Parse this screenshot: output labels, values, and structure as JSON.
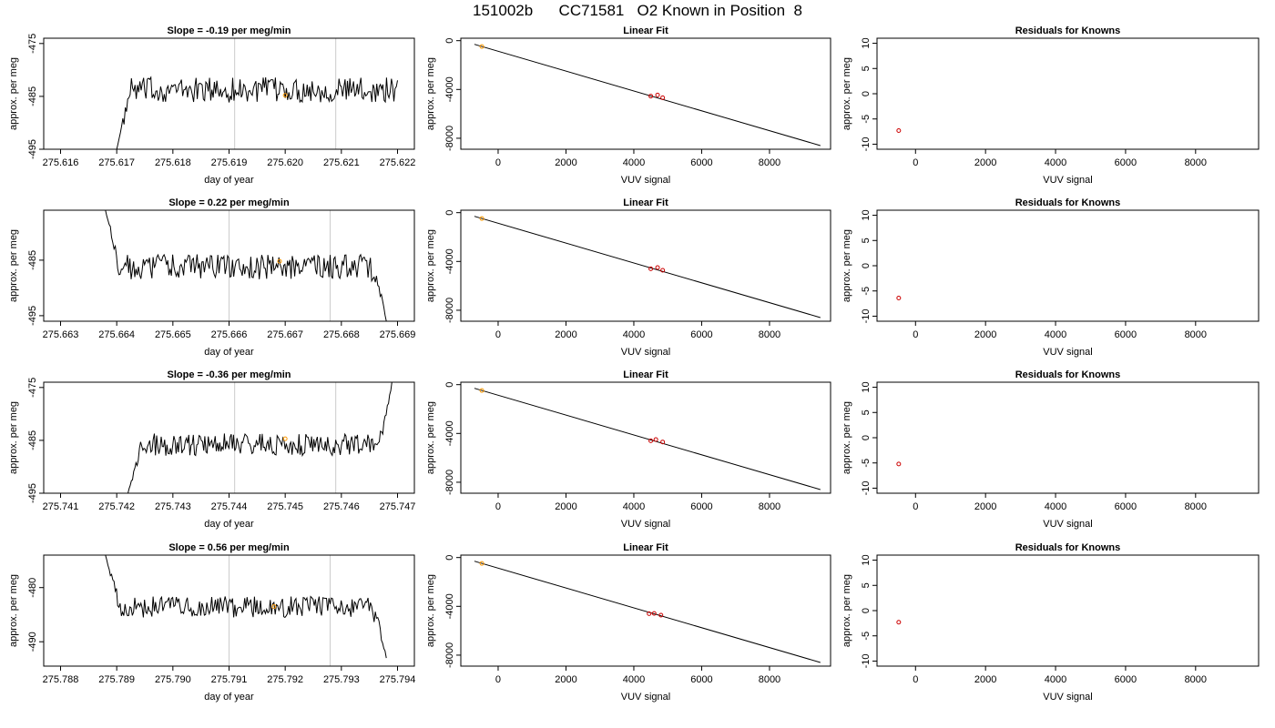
{
  "page": {
    "title": "151002b      CC71581   O2 Known in Position  8"
  },
  "colors": {
    "trace": "#000000",
    "vline": "#cccccc",
    "known_point": "#ff9900",
    "point": "#cc0000",
    "fit_line": "#000000"
  },
  "chart_data": [
    {
      "type": "line",
      "row": 1,
      "title": "Slope =  -0.19  per meg/min",
      "xlabel": "day of year",
      "ylabel": "approx. per meg",
      "xlim": [
        275.6157,
        275.6223
      ],
      "ylim": [
        -495,
        -474
      ],
      "xticks": [
        "275.616",
        "275.617",
        "275.618",
        "275.619",
        "275.620",
        "275.621",
        "275.622"
      ],
      "xtick_values": [
        275.616,
        275.617,
        275.618,
        275.619,
        275.62,
        275.621,
        275.622
      ],
      "yticks": [
        "-495",
        "-485",
        "-475"
      ],
      "ytick_values": [
        -495,
        -485,
        -475
      ],
      "vlines": [
        275.6191,
        275.6209
      ],
      "trace_range": [
        275.617,
        275.622
      ],
      "trace_start": -495,
      "trace_mean": -483.8,
      "trace_noise": 1.6,
      "trace_end_values": [],
      "highlight": {
        "x": 275.62,
        "y": -484.8
      }
    },
    {
      "type": "scatter",
      "row": 1,
      "title": "Linear Fit",
      "xlabel": "VUV signal",
      "ylabel": "approx. per meg",
      "xlim": [
        -1100,
        9800
      ],
      "ylim": [
        -8900,
        200
      ],
      "xticks": [
        "0",
        "2000",
        "4000",
        "6000",
        "8000"
      ],
      "xtick_values": [
        0,
        2000,
        4000,
        6000,
        8000
      ],
      "yticks": [
        "-8000",
        "-4000",
        "0"
      ],
      "ytick_values": [
        -8000,
        -4000,
        0
      ],
      "fit_line": [
        [
          -700,
          -300
        ],
        [
          9500,
          -8600
        ]
      ],
      "known_point": {
        "x": -480,
        "y": -484
      },
      "points": [
        {
          "x": 4500,
          "y": -4550
        },
        {
          "x": 4700,
          "y": -4450
        },
        {
          "x": 4850,
          "y": -4680
        }
      ]
    },
    {
      "type": "scatter",
      "row": 1,
      "title": "Residuals for Knowns",
      "xlabel": "VUV signal",
      "ylabel": "approx. per meg",
      "xlim": [
        -1100,
        9800
      ],
      "ylim": [
        -11,
        11
      ],
      "xticks": [
        "0",
        "2000",
        "4000",
        "6000",
        "8000"
      ],
      "xtick_values": [
        0,
        2000,
        4000,
        6000,
        8000
      ],
      "yticks": [
        "-10",
        "-5",
        "0",
        "5",
        "10"
      ],
      "ytick_values": [
        -10,
        -5,
        0,
        5,
        10
      ],
      "points": [
        {
          "x": -480,
          "y": -7.3
        }
      ]
    },
    {
      "type": "line",
      "row": 2,
      "title": "Slope =  0.22  per meg/min",
      "xlabel": "day of year",
      "ylabel": "approx. per meg",
      "xlim": [
        275.6627,
        275.6693
      ],
      "ylim": [
        -496,
        -476
      ],
      "xticks": [
        "275.663",
        "275.664",
        "275.665",
        "275.666",
        "275.667",
        "275.668",
        "275.669"
      ],
      "xtick_values": [
        275.663,
        275.664,
        275.665,
        275.666,
        275.667,
        275.668,
        275.669
      ],
      "yticks": [
        "-495",
        "-485"
      ],
      "ytick_values": [
        -495,
        -485
      ],
      "vlines": [
        275.666,
        275.6678
      ],
      "trace_range": [
        275.6638,
        275.6688
      ],
      "trace_start": -476,
      "trace_mean": -486.2,
      "trace_noise": 1.5,
      "trace_end_values": [
        -484.5,
        -496
      ],
      "highlight": {
        "x": 275.6669,
        "y": -485.2
      }
    },
    {
      "type": "scatter",
      "row": 2,
      "title": "Linear Fit",
      "xlabel": "VUV signal",
      "ylabel": "approx. per meg",
      "xlim": [
        -1100,
        9800
      ],
      "ylim": [
        -8900,
        200
      ],
      "xticks": [
        "0",
        "2000",
        "4000",
        "6000",
        "8000"
      ],
      "xtick_values": [
        0,
        2000,
        4000,
        6000,
        8000
      ],
      "yticks": [
        "-8000",
        "-4000",
        "0"
      ],
      "ytick_values": [
        -8000,
        -4000,
        0
      ],
      "fit_line": [
        [
          -700,
          -300
        ],
        [
          9500,
          -8600
        ]
      ],
      "known_point": {
        "x": -480,
        "y": -485
      },
      "points": [
        {
          "x": 4500,
          "y": -4600
        },
        {
          "x": 4700,
          "y": -4500
        },
        {
          "x": 4850,
          "y": -4720
        }
      ]
    },
    {
      "type": "scatter",
      "row": 2,
      "title": "Residuals for Knowns",
      "xlabel": "VUV signal",
      "ylabel": "approx. per meg",
      "xlim": [
        -1100,
        9800
      ],
      "ylim": [
        -11,
        11
      ],
      "xticks": [
        "0",
        "2000",
        "4000",
        "6000",
        "8000"
      ],
      "xtick_values": [
        0,
        2000,
        4000,
        6000,
        8000
      ],
      "yticks": [
        "-10",
        "-5",
        "0",
        "5",
        "10"
      ],
      "ytick_values": [
        -10,
        -5,
        0,
        5,
        10
      ],
      "points": [
        {
          "x": -480,
          "y": -6.4
        }
      ]
    },
    {
      "type": "line",
      "row": 3,
      "title": "Slope =  -0.36  per meg/min",
      "xlabel": "day of year",
      "ylabel": "approx. per meg",
      "xlim": [
        275.7407,
        275.7473
      ],
      "ylim": [
        -495,
        -474
      ],
      "xticks": [
        "275.741",
        "275.742",
        "275.743",
        "275.744",
        "275.745",
        "275.746",
        "275.747"
      ],
      "xtick_values": [
        275.741,
        275.742,
        275.743,
        275.744,
        275.745,
        275.746,
        275.747
      ],
      "yticks": [
        "-495",
        "-485",
        "-475"
      ],
      "ytick_values": [
        -495,
        -485,
        -475
      ],
      "vlines": [
        275.7441,
        275.7459
      ],
      "trace_range": [
        275.7422,
        275.7469
      ],
      "trace_start": -495,
      "trace_mean": -485.8,
      "trace_noise": 1.4,
      "trace_end_values": [
        -474
      ],
      "highlight": {
        "x": 275.745,
        "y": -484.7
      }
    },
    {
      "type": "scatter",
      "row": 3,
      "title": "Linear Fit",
      "xlabel": "VUV signal",
      "ylabel": "approx. per meg",
      "xlim": [
        -1100,
        9800
      ],
      "ylim": [
        -8900,
        200
      ],
      "xticks": [
        "0",
        "2000",
        "4000",
        "6000",
        "8000"
      ],
      "xtick_values": [
        0,
        2000,
        4000,
        6000,
        8000
      ],
      "yticks": [
        "-8000",
        "-4000",
        "0"
      ],
      "ytick_values": [
        -8000,
        -4000,
        0
      ],
      "fit_line": [
        [
          -700,
          -300
        ],
        [
          9500,
          -8600
        ]
      ],
      "known_point": {
        "x": -480,
        "y": -485
      },
      "points": [
        {
          "x": 4500,
          "y": -4600
        },
        {
          "x": 4650,
          "y": -4500
        },
        {
          "x": 4850,
          "y": -4700
        }
      ]
    },
    {
      "type": "scatter",
      "row": 3,
      "title": "Residuals for Knowns",
      "xlabel": "VUV signal",
      "ylabel": "approx. per meg",
      "xlim": [
        -1100,
        9800
      ],
      "ylim": [
        -11,
        11
      ],
      "xticks": [
        "0",
        "2000",
        "4000",
        "6000",
        "8000"
      ],
      "xtick_values": [
        0,
        2000,
        4000,
        6000,
        8000
      ],
      "yticks": [
        "-10",
        "-5",
        "0",
        "5",
        "10"
      ],
      "ytick_values": [
        -10,
        -5,
        0,
        5,
        10
      ],
      "points": [
        {
          "x": -480,
          "y": -5.2
        }
      ]
    },
    {
      "type": "line",
      "row": 4,
      "title": "Slope =  0.56  per meg/min",
      "xlabel": "day of year",
      "ylabel": "approx. per meg",
      "xlim": [
        275.7877,
        275.7943
      ],
      "ylim": [
        -494.5,
        -474
      ],
      "xticks": [
        "275.788",
        "275.789",
        "275.790",
        "275.791",
        "275.792",
        "275.793",
        "275.794"
      ],
      "xtick_values": [
        275.788,
        275.789,
        275.79,
        275.791,
        275.792,
        275.793,
        275.794
      ],
      "yticks": [
        "-490",
        "-480"
      ],
      "ytick_values": [
        -490,
        -480
      ],
      "vlines": [
        275.791,
        275.7928
      ],
      "trace_range": [
        275.7888,
        275.7938
      ],
      "trace_start": -474,
      "trace_mean": -483.6,
      "trace_noise": 1.3,
      "trace_end_values": [
        -482.5,
        -493
      ],
      "highlight": {
        "x": 275.7918,
        "y": -483.5
      }
    },
    {
      "type": "scatter",
      "row": 4,
      "title": "Linear Fit",
      "xlabel": "VUV signal",
      "ylabel": "approx. per meg",
      "xlim": [
        -1100,
        9800
      ],
      "ylim": [
        -8900,
        200
      ],
      "xticks": [
        "0",
        "2000",
        "4000",
        "6000",
        "8000"
      ],
      "xtick_values": [
        0,
        2000,
        4000,
        6000,
        8000
      ],
      "yticks": [
        "-8000",
        "-4000",
        "0"
      ],
      "ytick_values": [
        -8000,
        -4000,
        0
      ],
      "fit_line": [
        [
          -700,
          -300
        ],
        [
          9500,
          -8600
        ]
      ],
      "known_point": {
        "x": -480,
        "y": -484
      },
      "points": [
        {
          "x": 4450,
          "y": -4600
        },
        {
          "x": 4600,
          "y": -4580
        },
        {
          "x": 4800,
          "y": -4720
        }
      ]
    },
    {
      "type": "scatter",
      "row": 4,
      "title": "Residuals for Knowns",
      "xlabel": "VUV signal",
      "ylabel": "approx. per meg",
      "xlim": [
        -1100,
        9800
      ],
      "ylim": [
        -11,
        11
      ],
      "xticks": [
        "0",
        "2000",
        "4000",
        "6000",
        "8000"
      ],
      "xtick_values": [
        0,
        2000,
        4000,
        6000,
        8000
      ],
      "yticks": [
        "-10",
        "-5",
        "0",
        "5",
        "10"
      ],
      "ytick_values": [
        -10,
        -5,
        0,
        5,
        10
      ],
      "points": [
        {
          "x": -480,
          "y": -2.3
        }
      ]
    }
  ]
}
